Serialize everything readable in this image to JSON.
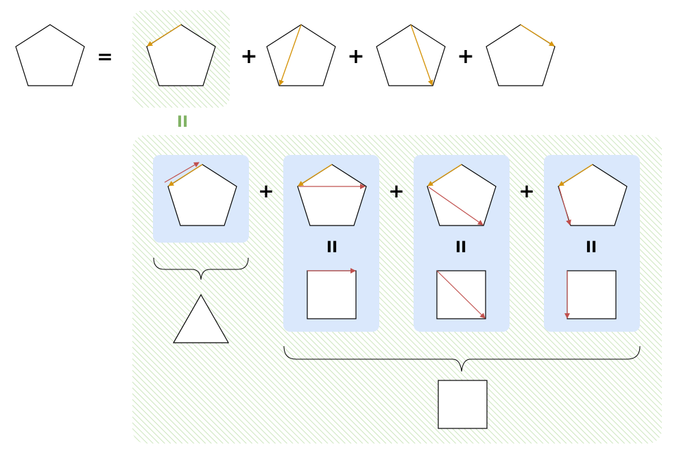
{
  "symbols": {
    "equals": "=",
    "plus": "+",
    "parallel_green": "II",
    "parallel_black": "II"
  },
  "colors": {
    "hatch_green": "#b9dca5",
    "group_blue": "#dae8fc",
    "arrow_orange": "#d6960f",
    "arrow_red": "#c0504d",
    "equals_green": "#82b366"
  }
}
